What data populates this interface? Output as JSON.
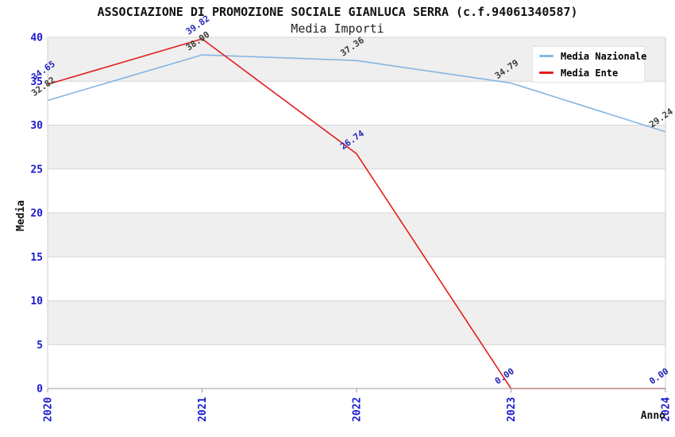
{
  "title": "ASSOCIAZIONE DI PROMOZIONE SOCIALE GIANLUCA SERRA (c.f.94061340587)",
  "subtitle": "Media Importi",
  "legend": {
    "items": [
      {
        "label": "Media Nazionale",
        "color": "#85b6e2"
      },
      {
        "label": "Media Ente",
        "color": "#e31c1c"
      }
    ]
  },
  "chart_data": {
    "type": "line",
    "title": "ASSOCIAZIONE DI PROMOZIONE SOCIALE GIANLUCA SERRA (c.f.94061340587)",
    "subtitle": "Media Importi",
    "x": [
      "2020",
      "2021",
      "2022",
      "2023",
      "2024"
    ],
    "series": [
      {
        "name": "Media Nazionale",
        "color": "#85b6e2",
        "label_color": "#3a3a3a",
        "values": [
          32.82,
          38.0,
          37.36,
          34.79,
          29.24
        ]
      },
      {
        "name": "Media Ente",
        "color": "#e31c1c",
        "label_color": "#2525bb",
        "values": [
          34.65,
          39.82,
          26.74,
          0.0,
          0.0
        ]
      }
    ],
    "xlabel": "Anno",
    "ylabel": "Media",
    "ylim": [
      0,
      40
    ],
    "ytick_step": 5,
    "yticks": [
      0,
      5,
      10,
      15,
      20,
      25,
      30,
      35,
      40
    ],
    "grid": "horizontal alternating bands",
    "legend_position": "top-right",
    "colors": {
      "tick_text": "#1a1acd",
      "axis_title_text": "#111111",
      "band_fill": "#efefef",
      "grid_line": "#d6d6d6",
      "plot_border": "#cccccc",
      "bottom_axis": "#b0b0b0",
      "tick_mark": "#999999"
    }
  }
}
